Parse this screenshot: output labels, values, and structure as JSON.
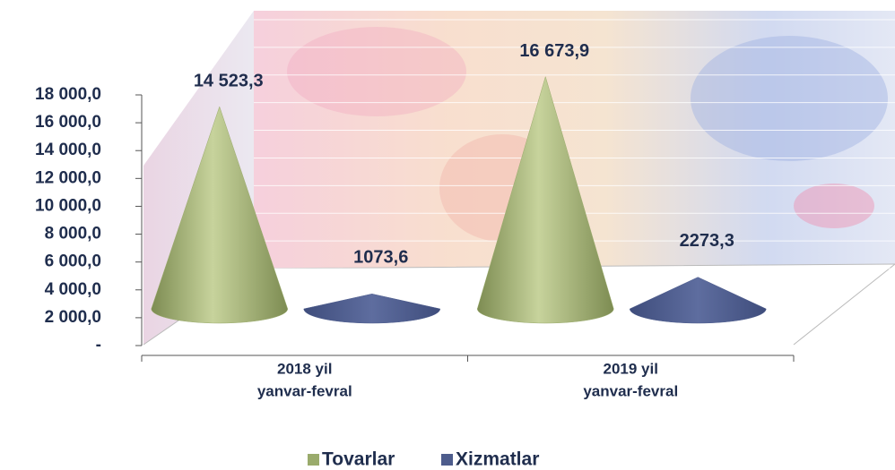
{
  "chart_data": {
    "type": "cone",
    "categories": [
      [
        "2018 yil",
        "yanvar-fevral"
      ],
      [
        "2019 yil",
        "yanvar-fevral"
      ]
    ],
    "series": [
      {
        "name": "Tovarlar",
        "color": "#9aab6c",
        "values": [
          14523.3,
          16673.9
        ],
        "value_labels": [
          "14 523,3",
          "16 673,9"
        ]
      },
      {
        "name": "Xizmatlar",
        "color": "#4d5c8c",
        "values": [
          1073.6,
          2273.3
        ],
        "value_labels": [
          "1073,6",
          "2273,3"
        ]
      }
    ],
    "ylim": [
      0,
      18000
    ],
    "yticks": [
      {
        "value": 0,
        "label": "-"
      },
      {
        "value": 2000,
        "label": "2 000,0"
      },
      {
        "value": 4000,
        "label": "4 000,0"
      },
      {
        "value": 6000,
        "label": "6 000,0"
      },
      {
        "value": 8000,
        "label": "8 000,0"
      },
      {
        "value": 10000,
        "label": "10 000,0"
      },
      {
        "value": 12000,
        "label": "12 000,0"
      },
      {
        "value": 14000,
        "label": "14 000,0"
      },
      {
        "value": 16000,
        "label": "16 000,0"
      },
      {
        "value": 18000,
        "label": "18 000,0"
      }
    ],
    "grid": true,
    "legend": "bottom"
  }
}
